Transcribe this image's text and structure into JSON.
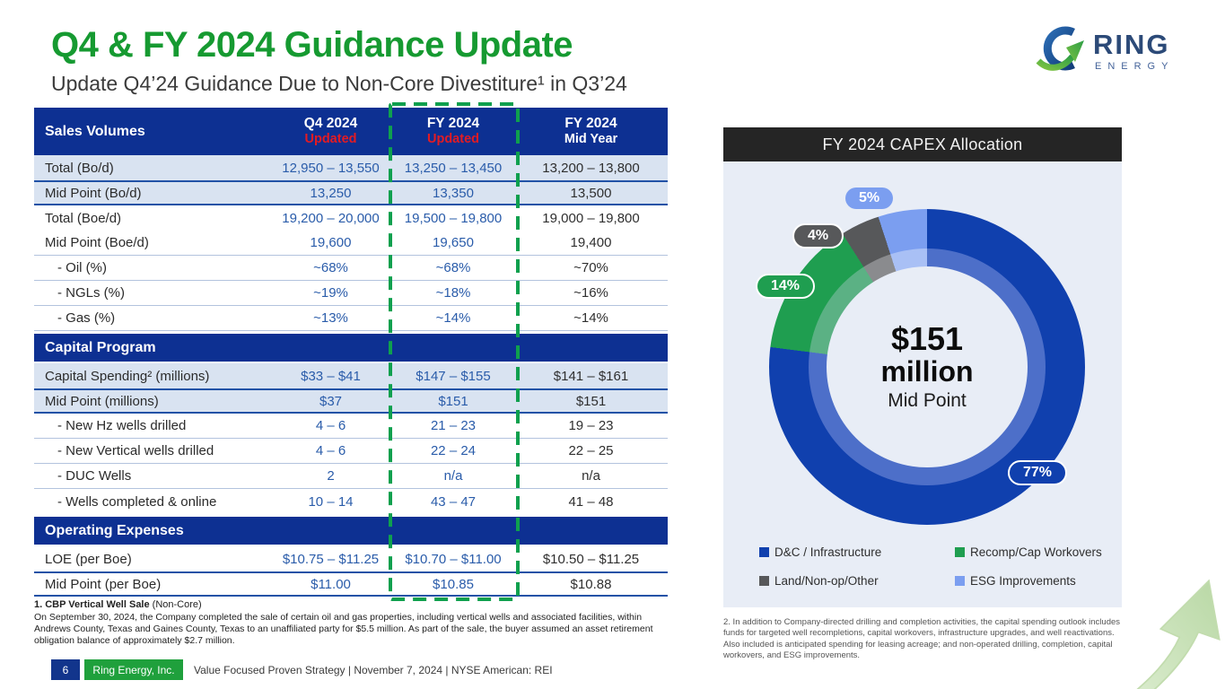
{
  "slide": {
    "title": "Q4 & FY 2024 Guidance Update",
    "subtitle": "Update Q4’24 Guidance Due to Non-Core Divestiture¹ in Q3’24"
  },
  "logo": {
    "name": "RING",
    "sub": "ENERGY"
  },
  "table": {
    "header": {
      "col0": "Sales Volumes",
      "col1_title": "Q4 2024",
      "col1_sub": "Updated",
      "col2_title": "FY 2024",
      "col2_sub": "Updated",
      "col3_title": "FY 2024",
      "col3_sub": "Mid Year"
    },
    "rows": [
      {
        "label": "Total (Bo/d)",
        "values": [
          "12,950 – 13,550",
          "13,250 – 13,450",
          "13,200 – 13,800"
        ],
        "shade": true
      },
      {
        "label": "Mid Point (Bo/d)",
        "values": [
          "13,250",
          "13,350",
          "13,500"
        ],
        "shade": true,
        "mid": true
      },
      {
        "label": "Total (Boe/d)",
        "values": [
          "19,200 – 20,000",
          "19,500 – 19,800",
          "19,000 – 19,800"
        ]
      },
      {
        "label": "Mid Point (Boe/d)",
        "values": [
          "19,600",
          "19,650",
          "19,400"
        ],
        "sep": true
      },
      {
        "label": "- Oil (%)",
        "values": [
          "~68%",
          "~68%",
          "~70%"
        ],
        "indent": true,
        "sep": true
      },
      {
        "label": "- NGLs (%)",
        "values": [
          "~19%",
          "~18%",
          "~16%"
        ],
        "indent": true,
        "sep": true
      },
      {
        "label": "- Gas (%)",
        "values": [
          "~13%",
          "~14%",
          "~14%"
        ],
        "indent": true,
        "sep": true
      },
      {
        "section": "Capital Program"
      },
      {
        "label": "Capital Spending² (millions)",
        "values": [
          "$33 – $41",
          "$147 – $155",
          "$141 – $161"
        ],
        "shade": true
      },
      {
        "label": "Mid Point (millions)",
        "values": [
          "$37",
          "$151",
          "$151"
        ],
        "shade": true,
        "mid": true
      },
      {
        "label": "- New Hz wells drilled",
        "values": [
          "4 – 6",
          "21 – 23",
          "19 – 23"
        ],
        "indent": true,
        "sep": true
      },
      {
        "label": "- New Vertical wells drilled",
        "values": [
          "4 – 6",
          "22 – 24",
          "22 – 25"
        ],
        "indent": true,
        "sep": true
      },
      {
        "label": "- DUC Wells",
        "values": [
          "2",
          "n/a",
          "n/a"
        ],
        "indent": true,
        "sep": true
      },
      {
        "label": "- Wells completed & online",
        "values": [
          "10 – 14",
          "43 – 47",
          "41 – 48"
        ],
        "indent": true
      },
      {
        "section": "Operating Expenses"
      },
      {
        "label": "LOE (per Boe)",
        "values": [
          "$10.75 – $11.25",
          "$10.70 – $11.00",
          "$10.50 – $11.25"
        ]
      },
      {
        "label": "Mid Point (per Boe)",
        "values": [
          "$11.00",
          "$10.85",
          "$10.88"
        ],
        "mid": true
      }
    ]
  },
  "chart_data": {
    "type": "pie",
    "title": "FY 2024 CAPEX Allocation",
    "center": {
      "value": "$151",
      "unit": "million",
      "label": "Mid Point"
    },
    "legend_position": "bottom",
    "segments": [
      {
        "label": "D&C / Infrastructure",
        "pct": 77,
        "color": "#1040ae",
        "tint": "#4d6fc9"
      },
      {
        "label": "Recomp/Cap Workovers",
        "pct": 14,
        "color": "#1f9e50",
        "tint": "#5bb184"
      },
      {
        "label": "Land/Non-op/Other",
        "pct": 4,
        "color": "#57585a",
        "tint": "#8a8b8e"
      },
      {
        "label": "ESG Improvements",
        "pct": 5,
        "color": "#7b9ef0",
        "tint": "#a9c0f5"
      }
    ]
  },
  "footnotes": {
    "left_title_bold": "1. CBP Vertical Well Sale",
    "left_title_rest": " (Non-Core)",
    "left_body": "On September 30, 2024, the Company completed the sale of certain oil and gas properties, including vertical wells and associated facilities, within Andrews County, Texas and Gaines County, Texas to an unaffiliated party for $5.5 million. As part of the sale, the buyer assumed an asset retirement obligation balance of approximately $2.7 million.",
    "right_body": "2. In addition to Company-directed drilling and completion activities, the capital spending outlook includes funds for targeted well recompletions, capital workovers, infrastructure upgrades, and well reactivations. Also included is anticipated spending for leasing acreage; and non-operated drilling, completion, capital workovers, and ESG improvements."
  },
  "footer": {
    "page": "6",
    "company": "Ring Energy, Inc.",
    "tagline": "Value Focused Proven Strategy  | November 7, 2024 |  NYSE American: REI"
  },
  "colors": {
    "title_green": "#169a31",
    "table_header_blue": "#0d3092",
    "updated_red": "#e31b23",
    "value_blue": "#2a5caa",
    "row_shade": "#d9e3f1",
    "dashed_green": "#0fa04e",
    "panel_bg": "#e8edf6",
    "chart_title_bg": "#252525"
  }
}
